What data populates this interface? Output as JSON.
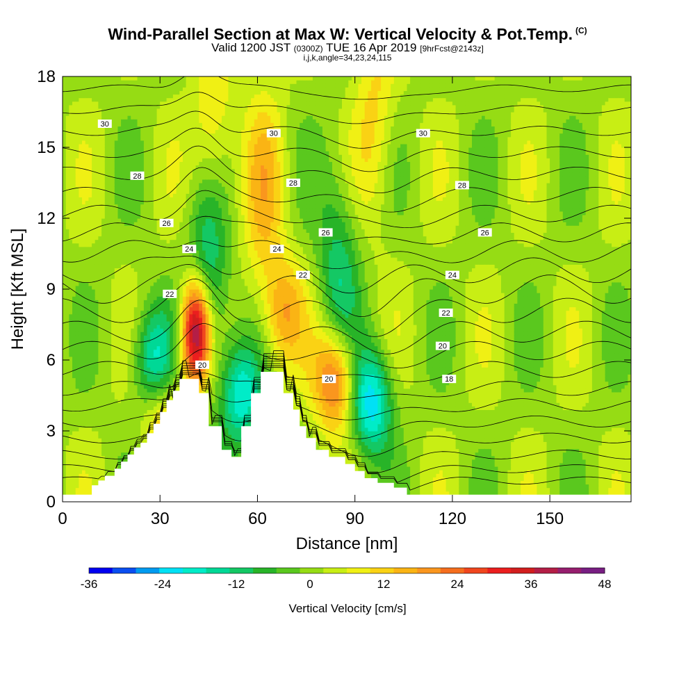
{
  "title": {
    "main": "Wind-Parallel Section at Max W: Vertical Velocity & Pot.Temp.",
    "copyright": "(C)",
    "valid_prefix": "Valid 1200 JST",
    "valid_utc": "(0300Z)",
    "valid_date": "TUE 16 Apr 2019",
    "forecast": "[9hrFcst@2143z]",
    "indices": "i,j,k,angle=34,23,24,115"
  },
  "chart_data": {
    "type": "heatmap",
    "xlabel": "Distance [nm]",
    "ylabel": "Height [Kft MSL]",
    "xlim": [
      0,
      175
    ],
    "ylim": [
      0,
      18
    ],
    "x_ticks": [
      0,
      30,
      60,
      90,
      120,
      150
    ],
    "y_ticks": [
      0,
      3,
      6,
      9,
      12,
      15,
      18
    ],
    "colorbar": {
      "title": "Vertical Velocity [cm/s]",
      "min": -36,
      "max": 48,
      "step": 4,
      "tick_values": [
        -36,
        -24,
        -12,
        0,
        12,
        24,
        36,
        48
      ],
      "colors": [
        "#0000f0",
        "#0a4ef0",
        "#009bf0",
        "#00e1f5",
        "#00ecc8",
        "#00d896",
        "#14c864",
        "#28b428",
        "#5ac81e",
        "#96dc14",
        "#c8ee14",
        "#f0f014",
        "#fad214",
        "#fab414",
        "#fa961e",
        "#f56e1e",
        "#f0461e",
        "#eb1e1e",
        "#d21e1e",
        "#b41e46",
        "#961e6e",
        "#781e82"
      ]
    },
    "terrain": [
      [
        0,
        0.3
      ],
      [
        9,
        0.3
      ],
      [
        9,
        0.7
      ],
      [
        11,
        0.7
      ],
      [
        11,
        0.9
      ],
      [
        13,
        0.9
      ],
      [
        13,
        1.1
      ],
      [
        16,
        1.1
      ],
      [
        16,
        1.4
      ],
      [
        18,
        1.4
      ],
      [
        18,
        1.7
      ],
      [
        20,
        1.7
      ],
      [
        20,
        2.0
      ],
      [
        22,
        2.0
      ],
      [
        22,
        2.3
      ],
      [
        24,
        2.3
      ],
      [
        24,
        2.5
      ],
      [
        26,
        2.5
      ],
      [
        26,
        2.9
      ],
      [
        28,
        2.9
      ],
      [
        28,
        3.3
      ],
      [
        30,
        3.3
      ],
      [
        30,
        3.8
      ],
      [
        32,
        3.8
      ],
      [
        32,
        4.3
      ],
      [
        34,
        4.3
      ],
      [
        34,
        4.7
      ],
      [
        36,
        4.7
      ],
      [
        36,
        5.2
      ],
      [
        42,
        5.2
      ],
      [
        42,
        4.6
      ],
      [
        45,
        4.6
      ],
      [
        45,
        3.2
      ],
      [
        49,
        3.2
      ],
      [
        49,
        2.2
      ],
      [
        52,
        2.2
      ],
      [
        52,
        1.9
      ],
      [
        55,
        1.9
      ],
      [
        55,
        3.2
      ],
      [
        58,
        3.2
      ],
      [
        58,
        4.6
      ],
      [
        61,
        4.6
      ],
      [
        61,
        5.5
      ],
      [
        68,
        5.5
      ],
      [
        68,
        4.6
      ],
      [
        71,
        4.6
      ],
      [
        71,
        3.9
      ],
      [
        73,
        3.9
      ],
      [
        73,
        3.2
      ],
      [
        75,
        3.2
      ],
      [
        75,
        2.7
      ],
      [
        78,
        2.7
      ],
      [
        78,
        2.2
      ],
      [
        82,
        2.2
      ],
      [
        82,
        1.9
      ],
      [
        87,
        1.9
      ],
      [
        87,
        1.6
      ],
      [
        90,
        1.6
      ],
      [
        90,
        1.3
      ],
      [
        93,
        1.3
      ],
      [
        93,
        1.0
      ],
      [
        97,
        1.0
      ],
      [
        97,
        0.8
      ],
      [
        102,
        0.8
      ],
      [
        102,
        0.6
      ],
      [
        106,
        0.6
      ],
      [
        106,
        0.3
      ],
      [
        175,
        0.3
      ]
    ],
    "updrafts": [
      {
        "x": 41,
        "z": 7.2,
        "w": 47
      },
      {
        "x": 84,
        "z": 5.2,
        "w": 28
      },
      {
        "x": 68,
        "z": 8.0,
        "w": 16
      },
      {
        "x": 31,
        "z": 3.2,
        "w": 15
      },
      {
        "x": 46,
        "z": 14.5,
        "w": 16
      },
      {
        "x": 62,
        "z": 13.0,
        "w": 12
      },
      {
        "x": 96,
        "z": 16.5,
        "w": 10
      }
    ],
    "downdrafts": [
      {
        "x": 95,
        "z": 4.2,
        "w": -26
      },
      {
        "x": 55,
        "z": 4.5,
        "w": -22
      },
      {
        "x": 45,
        "z": 10.5,
        "w": -22
      },
      {
        "x": 28,
        "z": 6.0,
        "w": -20
      },
      {
        "x": 85,
        "z": 9.5,
        "w": -14
      }
    ],
    "isentrope_labels": [
      {
        "text": "30",
        "x": 13,
        "z": 16.0
      },
      {
        "text": "30",
        "x": 65,
        "z": 15.6
      },
      {
        "text": "30",
        "x": 111,
        "z": 15.6
      },
      {
        "text": "28",
        "x": 23,
        "z": 13.8
      },
      {
        "text": "28",
        "x": 71,
        "z": 13.5
      },
      {
        "text": "28",
        "x": 123,
        "z": 13.4
      },
      {
        "text": "26",
        "x": 32,
        "z": 11.8
      },
      {
        "text": "26",
        "x": 81,
        "z": 11.4
      },
      {
        "text": "26",
        "x": 130,
        "z": 11.4
      },
      {
        "text": "24",
        "x": 39,
        "z": 10.7
      },
      {
        "text": "24",
        "x": 66,
        "z": 10.7
      },
      {
        "text": "24",
        "x": 120,
        "z": 9.6
      },
      {
        "text": "22",
        "x": 33,
        "z": 8.8
      },
      {
        "text": "22",
        "x": 74,
        "z": 9.6
      },
      {
        "text": "22",
        "x": 118,
        "z": 8.0
      },
      {
        "text": "20",
        "x": 43,
        "z": 5.8
      },
      {
        "text": "20",
        "x": 82,
        "z": 5.2
      },
      {
        "text": "20",
        "x": 117,
        "z": 6.6
      },
      {
        "text": "18",
        "x": 119,
        "z": 5.2
      }
    ],
    "isentrope_levels_kft": [
      0.9,
      1.4,
      2.0,
      2.7,
      3.4,
      4.1,
      4.8,
      5.6,
      6.4,
      7.2,
      8.1,
      9.0,
      9.8,
      10.6,
      11.4,
      12.2,
      13.0,
      13.9,
      14.8,
      15.7,
      16.6,
      17.5
    ]
  }
}
